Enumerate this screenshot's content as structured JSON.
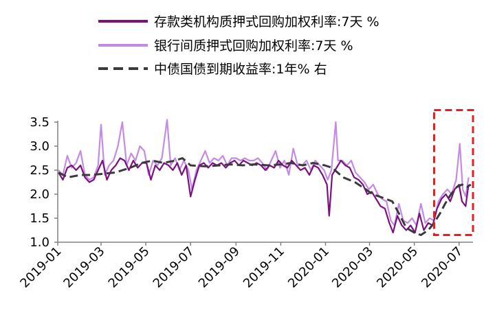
{
  "chart_data": {
    "type": "line",
    "title": "",
    "xlabel": "",
    "ylabel": "",
    "ylim": [
      1.0,
      3.5
    ],
    "yticks": [
      "1.0",
      "1.5",
      "2.0",
      "2.5",
      "3.0",
      "3.5"
    ],
    "ytick_values": [
      1.0,
      1.5,
      2.0,
      2.5,
      3.0,
      3.5
    ],
    "xlim": [
      "2019-01-01",
      "2020-07-20"
    ],
    "xticks": [
      "2019-01",
      "2019-03",
      "2019-05",
      "2019-07",
      "2019-09",
      "2019-11",
      "2020-01",
      "2020-03",
      "2020-05",
      "2020-07"
    ],
    "xtick_dates": [
      "2019-01-01",
      "2019-03-01",
      "2019-05-01",
      "2019-07-01",
      "2019-09-01",
      "2019-11-01",
      "2020-01-01",
      "2020-03-01",
      "2020-05-01",
      "2020-07-01"
    ],
    "grid": false,
    "legend_position": "top",
    "highlight_box": {
      "x_range": [
        "2020-05-28",
        "2020-07-20"
      ],
      "y_range": [
        1.15,
        3.75
      ],
      "color": "#e02020"
    },
    "series": [
      {
        "name": "存款类机构质押式回购加权利率:7天 %",
        "color": "#7b1180",
        "style": "solid",
        "points": [
          [
            "2019-01-02",
            2.45
          ],
          [
            "2019-01-08",
            2.3
          ],
          [
            "2019-01-14",
            2.55
          ],
          [
            "2019-01-20",
            2.6
          ],
          [
            "2019-01-26",
            2.5
          ],
          [
            "2019-02-01",
            2.6
          ],
          [
            "2019-02-07",
            2.35
          ],
          [
            "2019-02-13",
            2.25
          ],
          [
            "2019-02-19",
            2.3
          ],
          [
            "2019-02-25",
            2.5
          ],
          [
            "2019-03-03",
            2.7
          ],
          [
            "2019-03-09",
            2.3
          ],
          [
            "2019-03-15",
            2.5
          ],
          [
            "2019-03-21",
            2.6
          ],
          [
            "2019-03-27",
            2.75
          ],
          [
            "2019-04-02",
            2.7
          ],
          [
            "2019-04-08",
            2.5
          ],
          [
            "2019-04-14",
            2.7
          ],
          [
            "2019-04-20",
            2.55
          ],
          [
            "2019-04-26",
            2.65
          ],
          [
            "2019-05-02",
            2.65
          ],
          [
            "2019-05-08",
            2.3
          ],
          [
            "2019-05-14",
            2.6
          ],
          [
            "2019-05-20",
            2.5
          ],
          [
            "2019-05-26",
            2.65
          ],
          [
            "2019-06-01",
            2.6
          ],
          [
            "2019-06-07",
            2.5
          ],
          [
            "2019-06-13",
            2.65
          ],
          [
            "2019-06-19",
            2.4
          ],
          [
            "2019-06-25",
            2.6
          ],
          [
            "2019-07-01",
            1.95
          ],
          [
            "2019-07-07",
            2.3
          ],
          [
            "2019-07-13",
            2.6
          ],
          [
            "2019-07-19",
            2.65
          ],
          [
            "2019-07-25",
            2.55
          ],
          [
            "2019-07-31",
            2.65
          ],
          [
            "2019-08-06",
            2.6
          ],
          [
            "2019-08-12",
            2.65
          ],
          [
            "2019-08-18",
            2.55
          ],
          [
            "2019-08-24",
            2.65
          ],
          [
            "2019-08-30",
            2.7
          ],
          [
            "2019-09-05",
            2.6
          ],
          [
            "2019-09-11",
            2.7
          ],
          [
            "2019-09-17",
            2.65
          ],
          [
            "2019-09-23",
            2.6
          ],
          [
            "2019-09-29",
            2.65
          ],
          [
            "2019-10-05",
            2.6
          ],
          [
            "2019-10-11",
            2.5
          ],
          [
            "2019-10-17",
            2.6
          ],
          [
            "2019-10-23",
            2.55
          ],
          [
            "2019-10-29",
            2.7
          ],
          [
            "2019-11-04",
            2.6
          ],
          [
            "2019-11-10",
            2.55
          ],
          [
            "2019-11-16",
            2.7
          ],
          [
            "2019-11-22",
            2.6
          ],
          [
            "2019-11-28",
            2.5
          ],
          [
            "2019-12-04",
            2.55
          ],
          [
            "2019-12-10",
            2.4
          ],
          [
            "2019-12-16",
            2.6
          ],
          [
            "2019-12-22",
            2.55
          ],
          [
            "2019-12-28",
            2.4
          ],
          [
            "2020-01-03",
            2.2
          ],
          [
            "2020-01-06",
            1.55
          ],
          [
            "2020-01-10",
            2.4
          ],
          [
            "2020-01-16",
            2.55
          ],
          [
            "2020-01-22",
            2.7
          ],
          [
            "2020-01-28",
            2.6
          ],
          [
            "2020-02-03",
            2.55
          ],
          [
            "2020-02-09",
            2.35
          ],
          [
            "2020-02-15",
            2.3
          ],
          [
            "2020-02-21",
            2.2
          ],
          [
            "2020-02-27",
            2.0
          ],
          [
            "2020-03-04",
            2.05
          ],
          [
            "2020-03-10",
            1.9
          ],
          [
            "2020-03-16",
            1.75
          ],
          [
            "2020-03-22",
            1.7
          ],
          [
            "2020-03-28",
            1.4
          ],
          [
            "2020-04-02",
            1.2
          ],
          [
            "2020-04-08",
            1.55
          ],
          [
            "2020-04-14",
            1.35
          ],
          [
            "2020-04-20",
            1.25
          ],
          [
            "2020-04-26",
            1.35
          ],
          [
            "2020-05-02",
            1.2
          ],
          [
            "2020-05-08",
            1.6
          ],
          [
            "2020-05-14",
            1.25
          ],
          [
            "2020-05-20",
            1.4
          ],
          [
            "2020-05-26",
            1.35
          ],
          [
            "2020-06-01",
            1.7
          ],
          [
            "2020-06-07",
            1.9
          ],
          [
            "2020-06-13",
            2.0
          ],
          [
            "2020-06-19",
            1.85
          ],
          [
            "2020-06-25",
            2.1
          ],
          [
            "2020-07-01",
            2.2
          ],
          [
            "2020-07-05",
            1.85
          ],
          [
            "2020-07-10",
            1.75
          ],
          [
            "2020-07-14",
            2.2
          ]
        ]
      },
      {
        "name": "银行间质押式回购加权利率:7天 %",
        "color": "#c48ae6",
        "style": "solid",
        "points": [
          [
            "2019-01-02",
            2.5
          ],
          [
            "2019-01-08",
            2.4
          ],
          [
            "2019-01-14",
            2.8
          ],
          [
            "2019-01-20",
            2.55
          ],
          [
            "2019-01-26",
            2.65
          ],
          [
            "2019-02-01",
            2.9
          ],
          [
            "2019-02-07",
            2.4
          ],
          [
            "2019-02-13",
            2.3
          ],
          [
            "2019-02-19",
            2.35
          ],
          [
            "2019-02-25",
            2.6
          ],
          [
            "2019-03-01",
            3.45
          ],
          [
            "2019-03-06",
            2.4
          ],
          [
            "2019-03-12",
            2.6
          ],
          [
            "2019-03-18",
            2.7
          ],
          [
            "2019-03-24",
            3.0
          ],
          [
            "2019-03-30",
            3.5
          ],
          [
            "2019-04-05",
            2.6
          ],
          [
            "2019-04-11",
            2.85
          ],
          [
            "2019-04-17",
            2.7
          ],
          [
            "2019-04-23",
            3.0
          ],
          [
            "2019-04-29",
            2.9
          ],
          [
            "2019-05-05",
            2.4
          ],
          [
            "2019-05-11",
            2.7
          ],
          [
            "2019-05-17",
            2.6
          ],
          [
            "2019-05-23",
            2.75
          ],
          [
            "2019-05-30",
            3.55
          ],
          [
            "2019-06-04",
            2.6
          ],
          [
            "2019-06-10",
            2.75
          ],
          [
            "2019-06-16",
            2.5
          ],
          [
            "2019-06-22",
            2.7
          ],
          [
            "2019-06-28",
            2.5
          ],
          [
            "2019-07-03",
            2.1
          ],
          [
            "2019-07-09",
            2.5
          ],
          [
            "2019-07-15",
            2.7
          ],
          [
            "2019-07-21",
            2.9
          ],
          [
            "2019-07-27",
            2.65
          ],
          [
            "2019-08-02",
            2.75
          ],
          [
            "2019-08-08",
            2.7
          ],
          [
            "2019-08-14",
            2.8
          ],
          [
            "2019-08-20",
            2.6
          ],
          [
            "2019-08-26",
            2.75
          ],
          [
            "2019-09-01",
            2.75
          ],
          [
            "2019-09-07",
            2.7
          ],
          [
            "2019-09-13",
            2.75
          ],
          [
            "2019-09-19",
            2.7
          ],
          [
            "2019-09-25",
            2.7
          ],
          [
            "2019-10-01",
            2.75
          ],
          [
            "2019-10-07",
            2.65
          ],
          [
            "2019-10-13",
            2.5
          ],
          [
            "2019-10-19",
            2.7
          ],
          [
            "2019-10-25",
            2.9
          ],
          [
            "2019-10-31",
            2.55
          ],
          [
            "2019-11-06",
            2.7
          ],
          [
            "2019-11-12",
            2.4
          ],
          [
            "2019-11-18",
            2.95
          ],
          [
            "2019-11-24",
            2.6
          ],
          [
            "2019-11-30",
            2.6
          ],
          [
            "2019-12-06",
            2.7
          ],
          [
            "2019-12-12",
            2.5
          ],
          [
            "2019-12-18",
            2.7
          ],
          [
            "2019-12-24",
            2.6
          ],
          [
            "2019-12-30",
            2.5
          ],
          [
            "2020-01-04",
            2.3
          ],
          [
            "2020-01-09",
            2.5
          ],
          [
            "2020-01-15",
            3.5
          ],
          [
            "2020-01-18",
            2.7
          ],
          [
            "2020-01-24",
            2.7
          ],
          [
            "2020-01-30",
            2.6
          ],
          [
            "2020-02-05",
            2.7
          ],
          [
            "2020-02-11",
            2.45
          ],
          [
            "2020-02-17",
            2.35
          ],
          [
            "2020-02-23",
            2.25
          ],
          [
            "2020-02-29",
            2.1
          ],
          [
            "2020-03-06",
            2.2
          ],
          [
            "2020-03-12",
            2.0
          ],
          [
            "2020-03-18",
            1.9
          ],
          [
            "2020-03-24",
            1.85
          ],
          [
            "2020-03-30",
            1.45
          ],
          [
            "2020-04-04",
            1.35
          ],
          [
            "2020-04-10",
            1.8
          ],
          [
            "2020-04-16",
            1.45
          ],
          [
            "2020-04-22",
            1.4
          ],
          [
            "2020-04-28",
            1.5
          ],
          [
            "2020-05-04",
            1.35
          ],
          [
            "2020-05-10",
            1.8
          ],
          [
            "2020-05-16",
            1.4
          ],
          [
            "2020-05-22",
            1.5
          ],
          [
            "2020-05-28",
            1.45
          ],
          [
            "2020-06-03",
            1.85
          ],
          [
            "2020-06-09",
            2.0
          ],
          [
            "2020-06-15",
            2.1
          ],
          [
            "2020-06-21",
            2.0
          ],
          [
            "2020-06-27",
            2.3
          ],
          [
            "2020-07-02",
            3.05
          ],
          [
            "2020-07-06",
            2.1
          ],
          [
            "2020-07-10",
            1.95
          ],
          [
            "2020-07-14",
            2.35
          ]
        ]
      },
      {
        "name": "中债国债到期收益率:1年% 右",
        "color": "#3a3a3a",
        "style": "dashed",
        "points": [
          [
            "2019-01-02",
            2.45
          ],
          [
            "2019-01-15",
            2.35
          ],
          [
            "2019-02-01",
            2.4
          ],
          [
            "2019-02-15",
            2.4
          ],
          [
            "2019-03-01",
            2.42
          ],
          [
            "2019-03-20",
            2.45
          ],
          [
            "2019-04-10",
            2.55
          ],
          [
            "2019-04-25",
            2.65
          ],
          [
            "2019-05-10",
            2.7
          ],
          [
            "2019-05-25",
            2.65
          ],
          [
            "2019-06-10",
            2.7
          ],
          [
            "2019-06-20",
            2.75
          ],
          [
            "2019-07-01",
            2.6
          ],
          [
            "2019-07-20",
            2.58
          ],
          [
            "2019-08-10",
            2.6
          ],
          [
            "2019-08-25",
            2.62
          ],
          [
            "2019-09-10",
            2.6
          ],
          [
            "2019-09-25",
            2.62
          ],
          [
            "2019-10-15",
            2.6
          ],
          [
            "2019-11-01",
            2.62
          ],
          [
            "2019-11-15",
            2.65
          ],
          [
            "2019-12-01",
            2.6
          ],
          [
            "2019-12-15",
            2.65
          ],
          [
            "2019-12-31",
            2.6
          ],
          [
            "2020-01-10",
            2.55
          ],
          [
            "2020-01-25",
            2.35
          ],
          [
            "2020-02-10",
            2.25
          ],
          [
            "2020-02-25",
            2.1
          ],
          [
            "2020-03-05",
            2.0
          ],
          [
            "2020-03-20",
            1.92
          ],
          [
            "2020-04-01",
            1.85
          ],
          [
            "2020-04-10",
            1.6
          ],
          [
            "2020-04-20",
            1.3
          ],
          [
            "2020-05-01",
            1.2
          ],
          [
            "2020-05-10",
            1.15
          ],
          [
            "2020-05-20",
            1.25
          ],
          [
            "2020-05-28",
            1.4
          ],
          [
            "2020-06-05",
            1.6
          ],
          [
            "2020-06-12",
            1.8
          ],
          [
            "2020-06-20",
            2.0
          ],
          [
            "2020-06-28",
            2.15
          ],
          [
            "2020-07-05",
            2.2
          ],
          [
            "2020-07-12",
            2.15
          ],
          [
            "2020-07-17",
            2.2
          ]
        ]
      }
    ]
  }
}
